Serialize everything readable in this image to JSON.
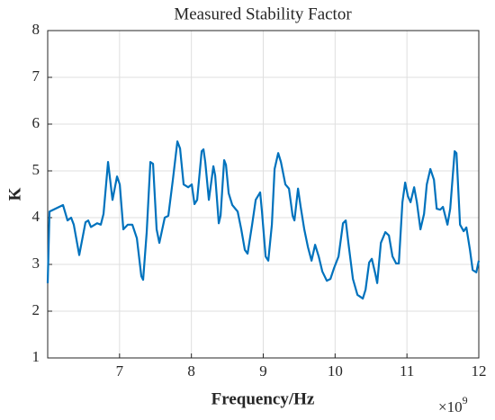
{
  "chart_data": {
    "type": "line",
    "title": "Measured Stability Factor",
    "xlabel": "Frequency/Hz",
    "ylabel": "K",
    "x_multiplier": {
      "base": "×10",
      "exponent": "9"
    },
    "xlim": [
      6,
      12
    ],
    "ylim": [
      1,
      8
    ],
    "xticks": [
      7,
      8,
      9,
      10,
      11,
      12
    ],
    "yticks": [
      1,
      2,
      3,
      4,
      5,
      6,
      7,
      8
    ],
    "grid": true,
    "series": [
      {
        "name": "K",
        "color": "#0072bd",
        "x": [
          6.0,
          6.025,
          6.213,
          6.276,
          6.326,
          6.363,
          6.439,
          6.526,
          6.564,
          6.602,
          6.689,
          6.739,
          6.777,
          6.84,
          6.902,
          6.965,
          7.003,
          7.053,
          7.115,
          7.178,
          7.241,
          7.303,
          7.328,
          7.378,
          7.429,
          7.466,
          7.516,
          7.554,
          7.629,
          7.679,
          7.742,
          7.805,
          7.842,
          7.892,
          7.955,
          8.005,
          8.043,
          8.08,
          8.143,
          8.168,
          8.193,
          8.243,
          8.306,
          8.331,
          8.381,
          8.406,
          8.456,
          8.481,
          8.519,
          8.569,
          8.644,
          8.694,
          8.744,
          8.782,
          8.845,
          8.895,
          8.957,
          8.982,
          9.033,
          9.07,
          9.12,
          9.158,
          9.208,
          9.246,
          9.308,
          9.358,
          9.409,
          9.434,
          9.484,
          9.521,
          9.571,
          9.622,
          9.672,
          9.722,
          9.772,
          9.822,
          9.885,
          9.935,
          9.985,
          10.048,
          10.11,
          10.148,
          10.185,
          10.248,
          10.311,
          10.386,
          10.424,
          10.474,
          10.511,
          10.561,
          10.586,
          10.637,
          10.699,
          10.749,
          10.799,
          10.85,
          10.887,
          10.937,
          10.975,
          11.013,
          11.05,
          11.1,
          11.138,
          11.188,
          11.238,
          11.276,
          11.326,
          11.376,
          11.414,
          11.464,
          11.501,
          11.564,
          11.602,
          11.664,
          11.689,
          11.739,
          11.789,
          11.827,
          11.877,
          11.915,
          11.965,
          12.0
        ],
        "values": [
          2.6,
          4.13,
          4.27,
          3.94,
          4.0,
          3.85,
          3.2,
          3.9,
          3.94,
          3.8,
          3.88,
          3.85,
          4.08,
          5.19,
          4.38,
          4.88,
          4.71,
          3.75,
          3.85,
          3.85,
          3.56,
          2.75,
          2.67,
          3.69,
          5.19,
          5.15,
          3.75,
          3.46,
          4.0,
          4.04,
          4.81,
          5.63,
          5.48,
          4.71,
          4.65,
          4.71,
          4.29,
          4.38,
          5.42,
          5.46,
          5.19,
          4.38,
          5.1,
          4.9,
          3.88,
          4.04,
          5.23,
          5.13,
          4.52,
          4.27,
          4.13,
          3.75,
          3.31,
          3.23,
          3.85,
          4.38,
          4.54,
          4.13,
          3.17,
          3.08,
          3.85,
          5.04,
          5.38,
          5.19,
          4.71,
          4.62,
          4.04,
          3.94,
          4.62,
          4.23,
          3.75,
          3.37,
          3.08,
          3.42,
          3.17,
          2.85,
          2.65,
          2.69,
          2.92,
          3.17,
          3.88,
          3.94,
          3.46,
          2.69,
          2.35,
          2.27,
          2.46,
          3.04,
          3.12,
          2.79,
          2.6,
          3.46,
          3.69,
          3.62,
          3.17,
          3.02,
          3.02,
          4.33,
          4.75,
          4.46,
          4.33,
          4.65,
          4.33,
          3.75,
          4.08,
          4.71,
          5.04,
          4.81,
          4.19,
          4.17,
          4.23,
          3.85,
          4.19,
          5.42,
          5.38,
          3.85,
          3.71,
          3.79,
          3.31,
          2.88,
          2.83,
          3.08
        ]
      }
    ]
  }
}
